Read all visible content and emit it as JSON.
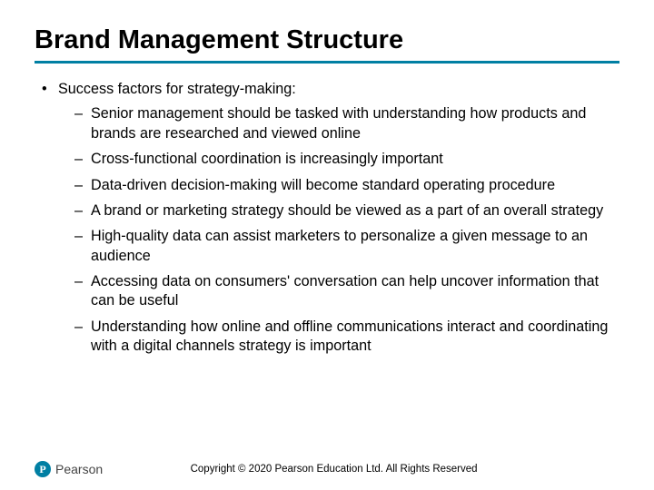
{
  "colors": {
    "accent": "#007fa3",
    "text": "#000000",
    "background": "#ffffff"
  },
  "typography": {
    "title_fontsize": 29,
    "body_fontsize": 16.2,
    "footer_fontsize": 11.5,
    "font_family": "Arial"
  },
  "title": "Brand Management Structure",
  "bullets": {
    "lead": "Success factors for strategy-making:",
    "items": [
      "Senior management should be tasked with understanding how products and brands are researched and viewed online",
      "Cross-functional coordination is increasingly important",
      "Data-driven decision-making will become standard operating procedure",
      "A brand or marketing strategy should be viewed as a part of an overall strategy",
      "High-quality data can assist marketers to personalize a given message to an audience",
      "Accessing data on consumers' conversation can help uncover information that can be useful",
      "Understanding how online and offline communications interact and coordinating with a digital channels strategy is important"
    ]
  },
  "footer": {
    "logo_letter": "P",
    "logo_text": "Pearson",
    "copyright": "Copyright © 2020 Pearson Education Ltd. All Rights Reserved"
  }
}
